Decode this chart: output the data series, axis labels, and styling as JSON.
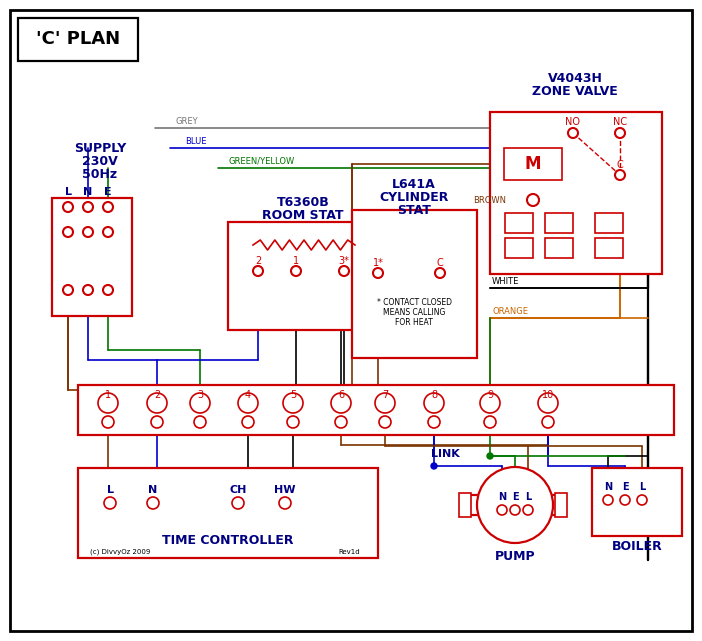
{
  "bg": "#ffffff",
  "black": "#000000",
  "red": "#cc0000",
  "blue": "#0000cc",
  "green": "#007700",
  "grey": "#777777",
  "brown": "#7b3300",
  "orange": "#cc6600",
  "db": "#000080",
  "title": "'C' PLAN",
  "supply_lines": [
    "SUPPLY",
    "230V",
    "50Hz"
  ],
  "supply_lne": [
    "L",
    "N",
    "E"
  ],
  "zv_title": [
    "V4043H",
    "ZONE VALVE"
  ],
  "zv_labels": [
    "NO",
    "NC",
    "C",
    "M"
  ],
  "rs_title": [
    "T6360B",
    "ROOM STAT"
  ],
  "rs_terms": [
    "2",
    "1",
    "3*"
  ],
  "cs_title": [
    "L641A",
    "CYLINDER",
    "STAT"
  ],
  "cs_terms": [
    "1*",
    "C"
  ],
  "cs_note": [
    "* CONTACT CLOSED",
    "MEANS CALLING",
    "FOR HEAT"
  ],
  "term_nums": [
    "1",
    "2",
    "3",
    "4",
    "5",
    "6",
    "7",
    "8",
    "9",
    "10"
  ],
  "link": "LINK",
  "tc_labels": [
    "L",
    "N",
    "CH",
    "HW"
  ],
  "tc_title": "TIME CONTROLLER",
  "pump_nel": [
    "N",
    "E",
    "L"
  ],
  "pump_title": "PUMP",
  "boiler_nel": [
    "N",
    "E",
    "L"
  ],
  "boiler_title": "BOILER",
  "copyright": "(c) DivvyOz 2009",
  "rev": "Rev1d",
  "wire_grey": "GREY",
  "wire_blue": "BLUE",
  "wire_gy": "GREEN/YELLOW",
  "wire_brown": "BROWN",
  "wire_white": "WHITE",
  "wire_orange": "ORANGE"
}
